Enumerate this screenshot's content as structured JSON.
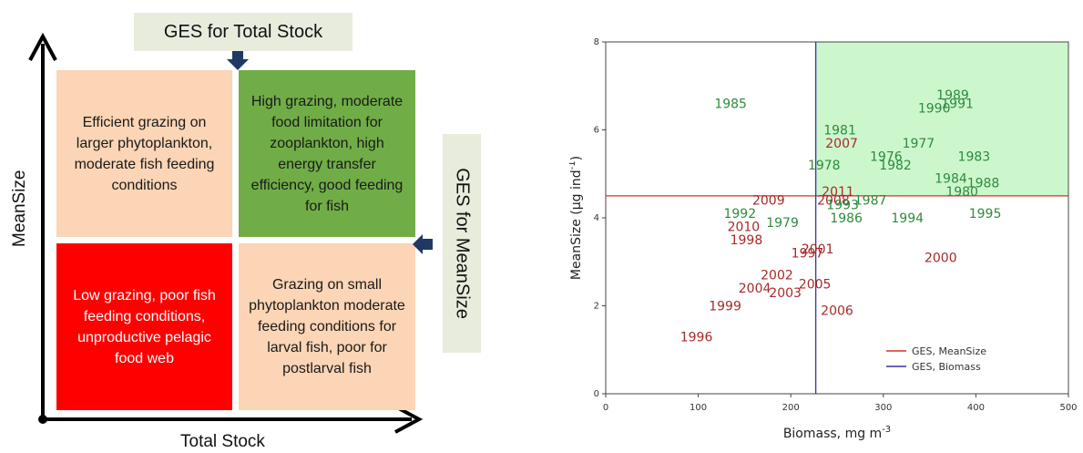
{
  "diagram": {
    "ges_total_label": "GES for Total Stock",
    "ges_mean_label": "GES for MeanSize",
    "y_axis_label": "MeanSize",
    "x_axis_label": "Total Stock",
    "quadrants": {
      "top_left": "Efficient grazing on larger phytoplankton, moderate fish feeding conditions",
      "top_right": "High grazing, moderate food limitation for zooplankton, high energy transfer efficiency, good feeding for fish",
      "bottom_left": "Low grazing, poor fish feeding conditions, unproductive pelagic food web",
      "bottom_right": "Grazing on small phytoplankton moderate feeding conditions for larval fish, poor for postlarval fish"
    },
    "colors": {
      "top_left": "#fbd5b5",
      "top_right": "#70ad47",
      "bottom_left": "#ff0000",
      "bottom_right": "#fbd5b5",
      "label_box": "#e8ecdd",
      "marker": "#1f3864"
    }
  },
  "chart_data": {
    "type": "scatter",
    "xlabel": "Biomass, mg m",
    "xlabel_sup": "-3",
    "ylabel": "MeanSize (µg ind",
    "ylabel_sup": "-1",
    "ylabel_close": ")",
    "xlim": [
      0,
      500
    ],
    "ylim": [
      0,
      8
    ],
    "xticks": [
      "0",
      "100",
      "200",
      "300",
      "400",
      "500"
    ],
    "yticks": [
      "0",
      "2",
      "4",
      "6",
      "8"
    ],
    "ges_meansize": 4.5,
    "ges_biomass": 227,
    "colors": {
      "old": "#2e8b3d",
      "new": "#a52a2a",
      "ges_meansize": "#d9302a",
      "ges_biomass": "#3333aa",
      "good_region": "#ccf7cc"
    },
    "legend": [
      {
        "label": "GES, MeanSize",
        "color": "#d9302a"
      },
      {
        "label": "GES, Biomass",
        "color": "#3333aa"
      }
    ],
    "points": [
      {
        "label": "1985",
        "x": 135,
        "y": 6.6,
        "group": "old"
      },
      {
        "label": "1989",
        "x": 375,
        "y": 6.8,
        "group": "old"
      },
      {
        "label": "1990",
        "x": 355,
        "y": 6.5,
        "group": "old"
      },
      {
        "label": "1991",
        "x": 380,
        "y": 6.6,
        "group": "old"
      },
      {
        "label": "1981",
        "x": 253,
        "y": 6.0,
        "group": "old"
      },
      {
        "label": "2007",
        "x": 255,
        "y": 5.7,
        "group": "new"
      },
      {
        "label": "1977",
        "x": 338,
        "y": 5.7,
        "group": "old"
      },
      {
        "label": "1976",
        "x": 303,
        "y": 5.4,
        "group": "old"
      },
      {
        "label": "1982",
        "x": 313,
        "y": 5.2,
        "group": "old"
      },
      {
        "label": "1983",
        "x": 398,
        "y": 5.4,
        "group": "old"
      },
      {
        "label": "1978",
        "x": 236,
        "y": 5.2,
        "group": "old"
      },
      {
        "label": "1984",
        "x": 373,
        "y": 4.9,
        "group": "old"
      },
      {
        "label": "1980",
        "x": 385,
        "y": 4.6,
        "group": "old"
      },
      {
        "label": "1988",
        "x": 408,
        "y": 4.8,
        "group": "old"
      },
      {
        "label": "2011",
        "x": 251,
        "y": 4.6,
        "group": "new"
      },
      {
        "label": "2008",
        "x": 246,
        "y": 4.4,
        "group": "new"
      },
      {
        "label": "1993",
        "x": 256,
        "y": 4.3,
        "group": "old"
      },
      {
        "label": "1987",
        "x": 286,
        "y": 4.4,
        "group": "old"
      },
      {
        "label": "1986",
        "x": 260,
        "y": 4.0,
        "group": "old"
      },
      {
        "label": "1994",
        "x": 326,
        "y": 4.0,
        "group": "old"
      },
      {
        "label": "1995",
        "x": 410,
        "y": 4.1,
        "group": "old"
      },
      {
        "label": "2009",
        "x": 176,
        "y": 4.4,
        "group": "new"
      },
      {
        "label": "1992",
        "x": 145,
        "y": 4.1,
        "group": "old"
      },
      {
        "label": "1979",
        "x": 191,
        "y": 3.9,
        "group": "old"
      },
      {
        "label": "2010",
        "x": 149,
        "y": 3.8,
        "group": "new"
      },
      {
        "label": "1998",
        "x": 152,
        "y": 3.5,
        "group": "new"
      },
      {
        "label": "2001",
        "x": 229,
        "y": 3.3,
        "group": "new"
      },
      {
        "label": "1997",
        "x": 218,
        "y": 3.2,
        "group": "new"
      },
      {
        "label": "2000",
        "x": 362,
        "y": 3.1,
        "group": "new"
      },
      {
        "label": "2002",
        "x": 185,
        "y": 2.7,
        "group": "new"
      },
      {
        "label": "2005",
        "x": 226,
        "y": 2.5,
        "group": "new"
      },
      {
        "label": "2004",
        "x": 161,
        "y": 2.4,
        "group": "new"
      },
      {
        "label": "2003",
        "x": 194,
        "y": 2.3,
        "group": "new"
      },
      {
        "label": "1999",
        "x": 129,
        "y": 2.0,
        "group": "new"
      },
      {
        "label": "2006",
        "x": 250,
        "y": 1.9,
        "group": "new"
      },
      {
        "label": "1996",
        "x": 98,
        "y": 1.3,
        "group": "new"
      }
    ]
  }
}
